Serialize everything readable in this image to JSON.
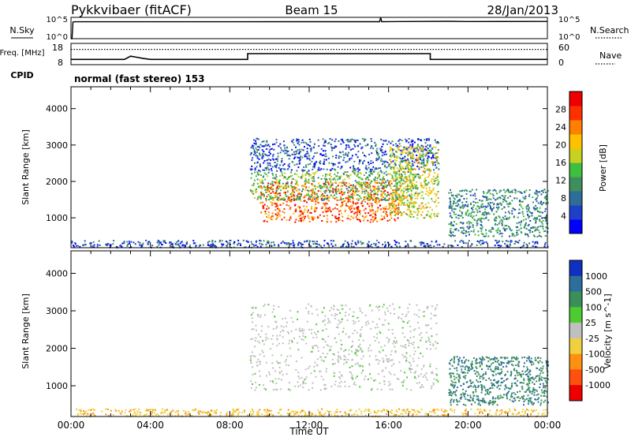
{
  "header": {
    "station": "Pykkvibaer (fitACF)",
    "beam": "Beam 15",
    "date": "28/Jan/2013",
    "cpid_label": "CPID",
    "cpid_value": "normal (fast stereo) 153"
  },
  "chart_data": [
    {
      "type": "line",
      "panel": "noise",
      "left_label": "N.Sky",
      "right_label": "N.Search",
      "left_ticks": [
        "10^5",
        "10^0"
      ],
      "right_ticks": [
        "10^5",
        "10^0"
      ],
      "yscale": "log",
      "ylim": [
        1,
        100000
      ],
      "series": [
        {
          "name": "N.Sky",
          "style": "solid",
          "x": [
            0.0,
            0.05,
            0.1,
            0.2,
            4,
            8,
            12,
            15.55,
            15.6,
            15.65,
            16,
            19,
            20,
            24
          ],
          "y": [
            1,
            1,
            8000,
            9000,
            9000,
            9000,
            9500,
            9500,
            100000,
            9500,
            10000,
            12000,
            10500,
            11000
          ]
        }
      ]
    },
    {
      "type": "line",
      "panel": "frequency",
      "left_label": "Freq. [MHz]",
      "right_label": "Nave",
      "left_ticks": [
        "18",
        "8"
      ],
      "right_ticks": [
        "60",
        "0"
      ],
      "ylim": [
        8,
        18
      ],
      "series": [
        {
          "name": "Freq.",
          "style": "solid",
          "x": [
            0,
            2.7,
            3.0,
            3.3,
            3.6,
            4,
            8.9,
            8.9,
            18.1,
            18.1,
            24
          ],
          "y": [
            10.5,
            10.5,
            12.0,
            11.5,
            11.0,
            10.5,
            10.5,
            13.2,
            13.2,
            10.5,
            10.5
          ]
        },
        {
          "name": "Nave",
          "style": "dotted",
          "x": [
            0,
            24
          ],
          "y": [
            15.2,
            15.2
          ]
        }
      ]
    },
    {
      "type": "heatmap",
      "panel": "power",
      "xlabel": "",
      "ylabel": "Slant Range [km]",
      "yticks": [
        1000,
        2000,
        3000,
        4000
      ],
      "ylim": [
        180,
        4600
      ],
      "xlim": [
        0,
        24
      ],
      "colorbar": {
        "label": "Power [dB]",
        "ticks": [
          4,
          8,
          12,
          16,
          20,
          24,
          28
        ],
        "range": [
          0,
          32
        ],
        "colors": [
          "#0000ff",
          "#1e40c8",
          "#2e6e96",
          "#3f8f5e",
          "#3fbf3f",
          "#c8d020",
          "#ffc000",
          "#ff8000",
          "#ff3000",
          "#ee0000"
        ]
      },
      "regions": [
        {
          "hours": [
            9.5,
            16.5
          ],
          "range_km": [
            900,
            2000
          ],
          "power_db": 26
        },
        {
          "hours": [
            9.0,
            17.5
          ],
          "range_km": [
            1500,
            2300
          ],
          "power_db": 14
        },
        {
          "hours": [
            9.0,
            18.5
          ],
          "range_km": [
            2300,
            3200
          ],
          "power_db": 6
        },
        {
          "hours": [
            16.0,
            18.5
          ],
          "range_km": [
            1000,
            3000
          ],
          "power_db": 18
        },
        {
          "hours": [
            19.0,
            24.0
          ],
          "range_km": [
            500,
            1800
          ],
          "power_db": 10
        },
        {
          "hours": [
            0.0,
            24.0
          ],
          "range_km": [
            200,
            400
          ],
          "power_db": 6
        }
      ]
    },
    {
      "type": "heatmap",
      "panel": "velocity",
      "xlabel": "Time UT",
      "ylabel": "Slant Range [km]",
      "xticks": [
        "00:00",
        "04:00",
        "08:00",
        "12:00",
        "16:00",
        "20:00",
        "00:00"
      ],
      "yticks": [
        1000,
        2000,
        3000,
        4000
      ],
      "ylim": [
        180,
        4600
      ],
      "xlim": [
        0,
        24
      ],
      "colorbar": {
        "label": "Velocity [m s^-1]",
        "ticks": [
          "1000",
          "500",
          "100",
          "25",
          "-25",
          "-100",
          "-500",
          "-1000"
        ],
        "colors": [
          "#1030c0",
          "#2e6e9a",
          "#3a8f5a",
          "#4ccc30",
          "#c0c0c0",
          "#f0d040",
          "#ff9010",
          "#ff5010",
          "#ee0000"
        ]
      },
      "regions": [
        {
          "hours": [
            9.0,
            18.5
          ],
          "range_km": [
            900,
            3200
          ],
          "velocity_ms": 0
        },
        {
          "hours": [
            19.0,
            24.0
          ],
          "range_km": [
            500,
            1800
          ],
          "velocity_ms": 200
        },
        {
          "hours": [
            0.0,
            24.0
          ],
          "range_km": [
            200,
            400
          ],
          "velocity_ms": -100
        }
      ]
    }
  ]
}
